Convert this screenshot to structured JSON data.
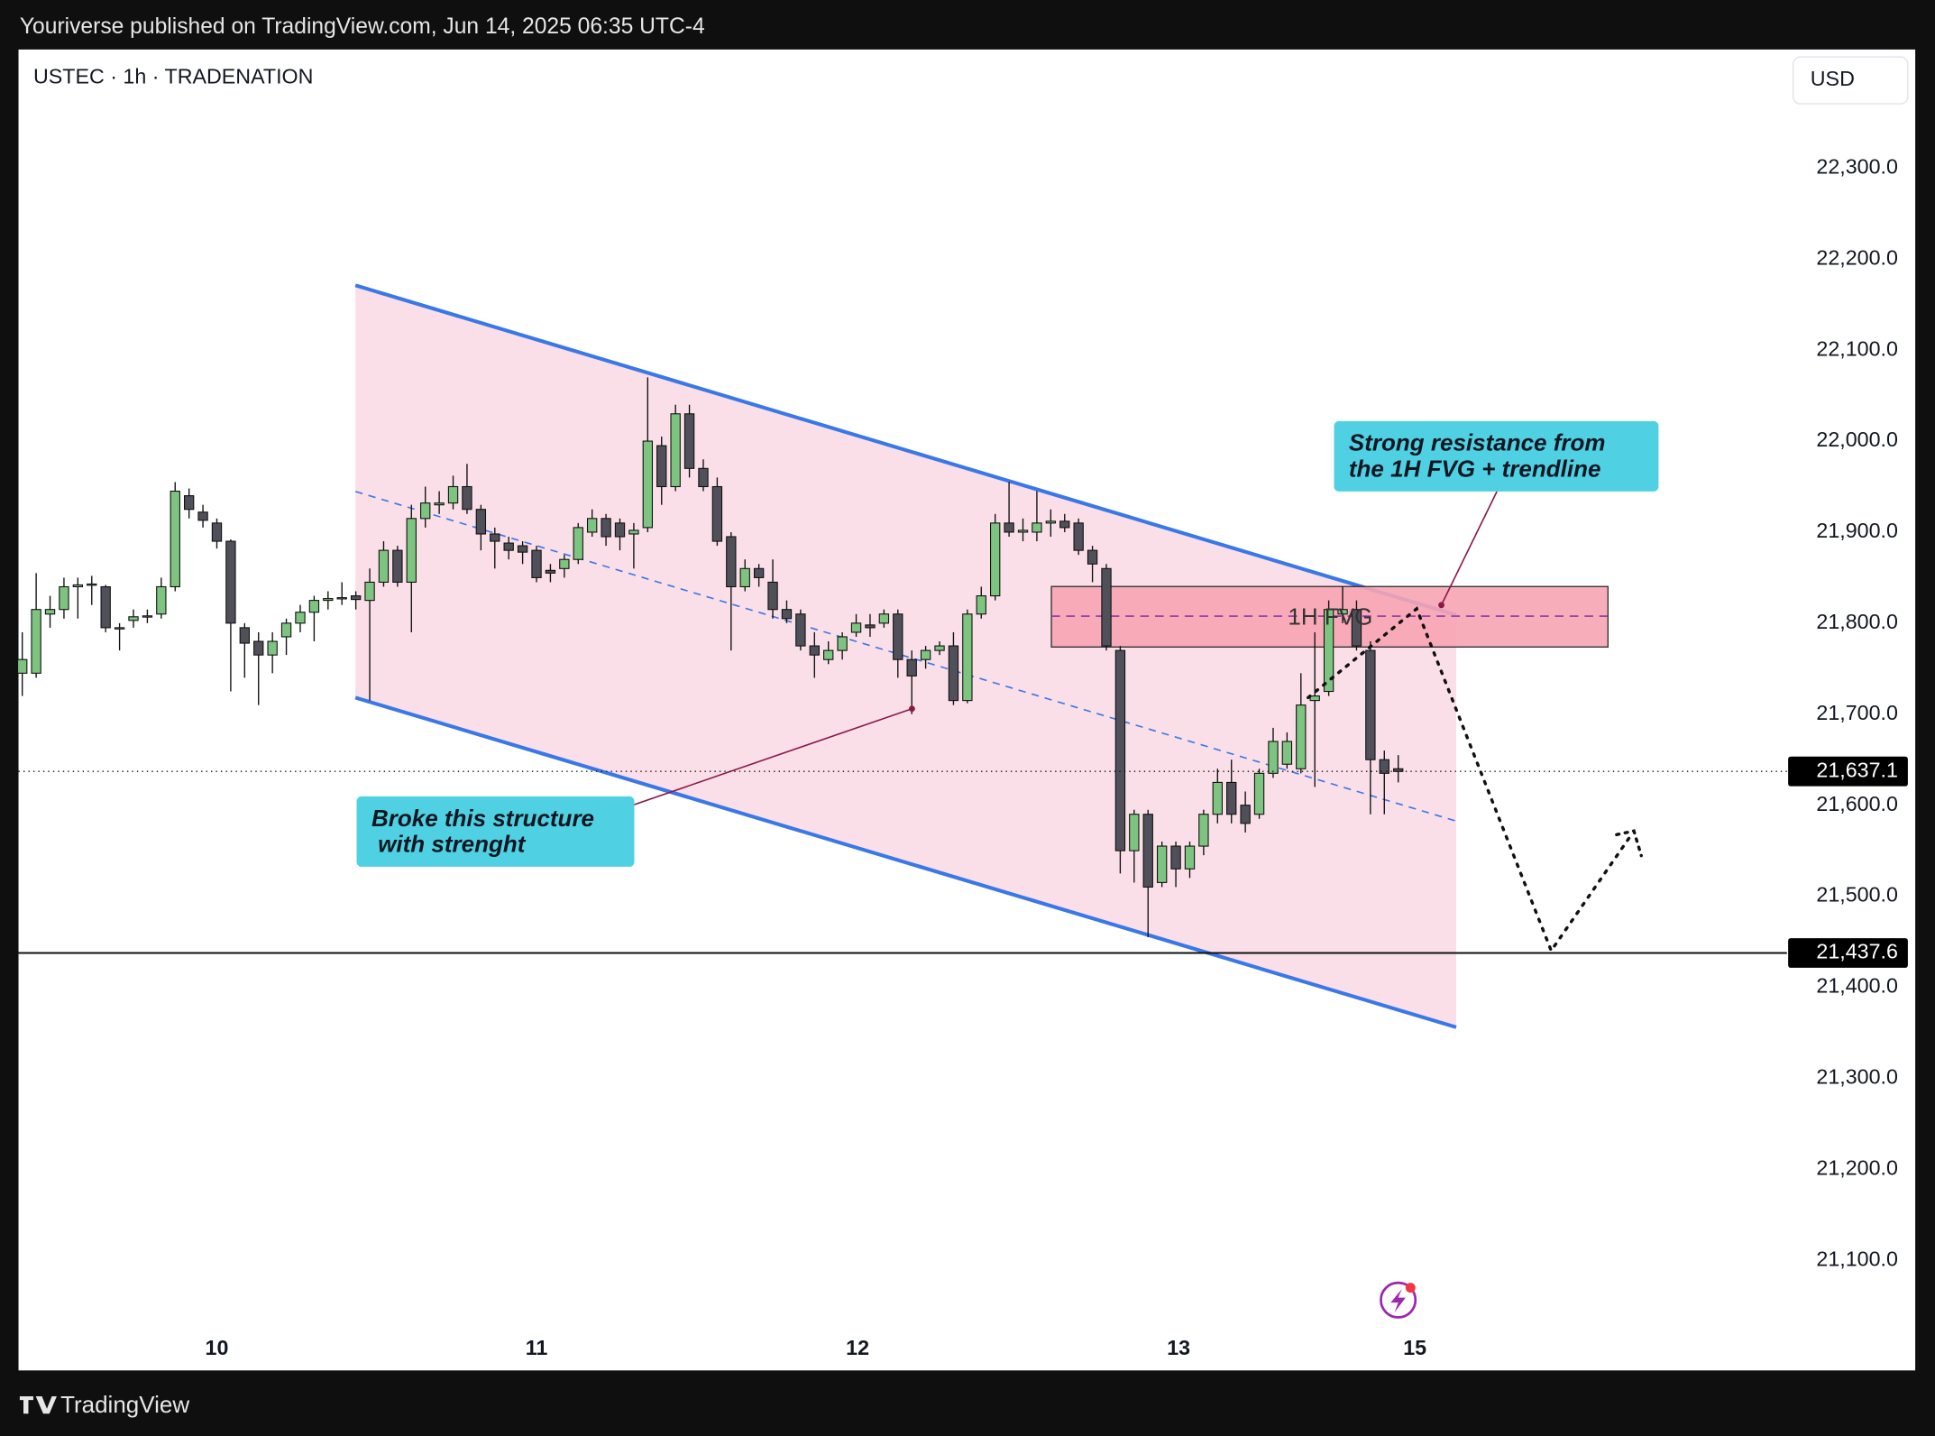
{
  "header": {
    "text": "Youriverse published on TradingView.com, Jun 14, 2025 06:35 UTC-4"
  },
  "footer": {
    "brand": "TradingView"
  },
  "chart_data": {
    "type": "candlestick",
    "title": "USTEC · 1h · TRADENATION",
    "currency": "USD",
    "up_color": "#7cc47f",
    "down_color": "#50505a",
    "x": [
      0,
      1,
      2,
      3,
      4,
      5,
      6,
      7,
      8,
      9,
      10,
      11,
      12,
      13,
      14,
      15,
      16,
      17,
      18,
      19,
      20,
      21,
      22,
      23,
      24,
      25,
      26,
      27,
      28,
      29,
      30,
      31,
      32,
      33,
      34,
      35,
      36,
      37,
      38,
      39,
      40,
      41,
      42,
      43,
      44,
      45,
      46,
      47,
      48,
      49,
      50,
      51,
      52,
      53,
      54,
      55,
      56,
      57,
      58,
      59,
      60,
      61,
      62,
      63,
      64,
      65,
      66,
      67,
      68,
      69,
      70,
      71,
      72,
      73,
      74,
      75,
      76,
      77,
      78,
      79,
      80,
      81,
      82,
      83,
      84,
      85,
      86,
      87,
      88,
      89,
      90,
      91,
      92,
      93,
      94,
      95,
      96,
      97,
      98,
      99
    ],
    "open": [
      21745,
      21745,
      21810,
      21815,
      21840,
      21842,
      21840,
      21795,
      21803,
      21807,
      21810,
      21840,
      21940,
      21922,
      21910,
      21890,
      21795,
      21780,
      21765,
      21785,
      21800,
      21812,
      21825,
      21827,
      21830,
      21825,
      21845,
      21880,
      21845,
      21915,
      21930,
      21932,
      21950,
      21925,
      21898,
      21888,
      21885,
      21880,
      21858,
      21860,
      21870,
      21900,
      21915,
      21910,
      21898,
      21905,
      21995,
      21950,
      22030,
      21970,
      21950,
      21895,
      21840,
      21860,
      21845,
      21815,
      21810,
      21775,
      21760,
      21770,
      21790,
      21798,
      21800,
      21810,
      21760,
      21760,
      21770,
      21775,
      21715,
      21810,
      21830,
      21910,
      21900,
      21900,
      21910,
      21912,
      21910,
      21880,
      21860,
      21770,
      21550,
      21590,
      21515,
      21555,
      21530,
      21555,
      21590,
      21625,
      21600,
      21590,
      21635,
      21645,
      21640,
      21715,
      21725,
      21810,
      21815,
      21770,
      21650,
      21640
    ],
    "high": [
      21790,
      21855,
      21830,
      21850,
      21850,
      21852,
      21842,
      21800,
      21815,
      21815,
      21850,
      21955,
      21948,
      21930,
      21915,
      21892,
      21800,
      21790,
      21790,
      21805,
      21820,
      21830,
      21835,
      21845,
      21835,
      21860,
      21890,
      21885,
      21930,
      21950,
      21945,
      21962,
      21975,
      21930,
      21905,
      21895,
      21890,
      21885,
      21865,
      21875,
      21910,
      21925,
      21920,
      21915,
      21910,
      22070,
      22005,
      22040,
      22040,
      21980,
      21960,
      21900,
      21870,
      21865,
      21870,
      21825,
      21815,
      21790,
      21780,
      21790,
      21810,
      21810,
      21815,
      21815,
      21770,
      21775,
      21780,
      21790,
      21815,
      21840,
      21920,
      21955,
      21915,
      21945,
      21925,
      21920,
      21915,
      21885,
      21865,
      21775,
      21595,
      21595,
      21560,
      21560,
      21560,
      21595,
      21640,
      21650,
      21615,
      21640,
      21685,
      21680,
      21745,
      21790,
      21825,
      21840,
      21825,
      21780,
      21660,
      21655
    ],
    "low": [
      21720,
      21740,
      21795,
      21805,
      21805,
      21820,
      21790,
      21770,
      21795,
      21800,
      21805,
      21835,
      21915,
      21905,
      21882,
      21725,
      21740,
      21710,
      21745,
      21765,
      21790,
      21780,
      21815,
      21820,
      21815,
      21715,
      21840,
      21840,
      21790,
      21905,
      21920,
      21925,
      21920,
      21880,
      21860,
      21870,
      21865,
      21845,
      21845,
      21850,
      21865,
      21895,
      21885,
      21880,
      21860,
      21900,
      21930,
      21945,
      21960,
      21945,
      21885,
      21770,
      21835,
      21840,
      21805,
      21800,
      21770,
      21740,
      21755,
      21760,
      21785,
      21785,
      21795,
      21740,
      21700,
      21750,
      21765,
      21710,
      21712,
      21805,
      21825,
      21895,
      21890,
      21890,
      21895,
      21900,
      21875,
      21845,
      21770,
      21525,
      21515,
      21455,
      21510,
      21510,
      21520,
      21545,
      21580,
      21580,
      21570,
      21585,
      21630,
      21640,
      21635,
      21620,
      21720,
      21800,
      21770,
      21590,
      21590,
      21625
    ],
    "close": [
      21760,
      21815,
      21815,
      21840,
      21842,
      21843,
      21795,
      21795,
      21807,
      21808,
      21840,
      21945,
      21925,
      21913,
      21890,
      21800,
      21778,
      21765,
      21780,
      21800,
      21812,
      21825,
      21827,
      21828,
      21826,
      21845,
      21880,
      21845,
      21915,
      21932,
      21932,
      21950,
      21925,
      21898,
      21890,
      21880,
      21878,
      21850,
      21855,
      21870,
      21905,
      21915,
      21895,
      21895,
      21902,
      22000,
      21950,
      22030,
      21970,
      21950,
      21890,
      21840,
      21860,
      21850,
      21815,
      21805,
      21775,
      21765,
      21770,
      21785,
      21800,
      21795,
      21810,
      21760,
      21742,
      21770,
      21775,
      21715,
      21810,
      21830,
      21910,
      21900,
      21902,
      21910,
      21912,
      21905,
      21880,
      21865,
      21775,
      21550,
      21590,
      21510,
      21555,
      21530,
      21555,
      21590,
      21625,
      21590,
      21580,
      21635,
      21670,
      21670,
      21710,
      21720,
      21815,
      21815,
      21775,
      21650,
      21635,
      21637.1
    ],
    "xlim": [
      -0.27,
      136.2
    ],
    "xticks": [
      {
        "value": 14,
        "label": "10"
      },
      {
        "value": 37,
        "label": "11"
      },
      {
        "value": 60.1,
        "label": "12"
      },
      {
        "value": 83.2,
        "label": "13"
      },
      {
        "value": 100.2,
        "label": "15"
      }
    ],
    "ylim": [
      20978.9,
      22430.3
    ],
    "yticks": [
      {
        "value": 21100,
        "label": "21,100.0"
      },
      {
        "value": 21200,
        "label": "21,200.0"
      },
      {
        "value": 21300,
        "label": "21,300.0"
      },
      {
        "value": 21400,
        "label": "21,400.0"
      },
      {
        "value": 21500,
        "label": "21,500.0"
      },
      {
        "value": 21600,
        "label": "21,600.0"
      },
      {
        "value": 21700,
        "label": "21,700.0"
      },
      {
        "value": 21800,
        "label": "21,800.0"
      },
      {
        "value": 21900,
        "label": "21,900.0"
      },
      {
        "value": 22000,
        "label": "22,000.0"
      },
      {
        "value": 22100,
        "label": "22,100.0"
      },
      {
        "value": 22200,
        "label": "22,200.0"
      },
      {
        "value": 22300,
        "label": "22,300.0"
      }
    ],
    "grid": false,
    "price_lines": [
      {
        "value": 21637.1,
        "label": "21,637.1",
        "style": "dotted"
      },
      {
        "value": 21437.6,
        "label": "21,437.6",
        "style": "solid"
      }
    ],
    "annotations": [
      {
        "lines": [
          "Strong resistance from",
          "the 1H FVG + trendline"
        ]
      },
      {
        "lines": [
          "Broke this structure",
          " with strenght"
        ]
      },
      {
        "lines": [
          "1H FVG"
        ]
      }
    ]
  }
}
